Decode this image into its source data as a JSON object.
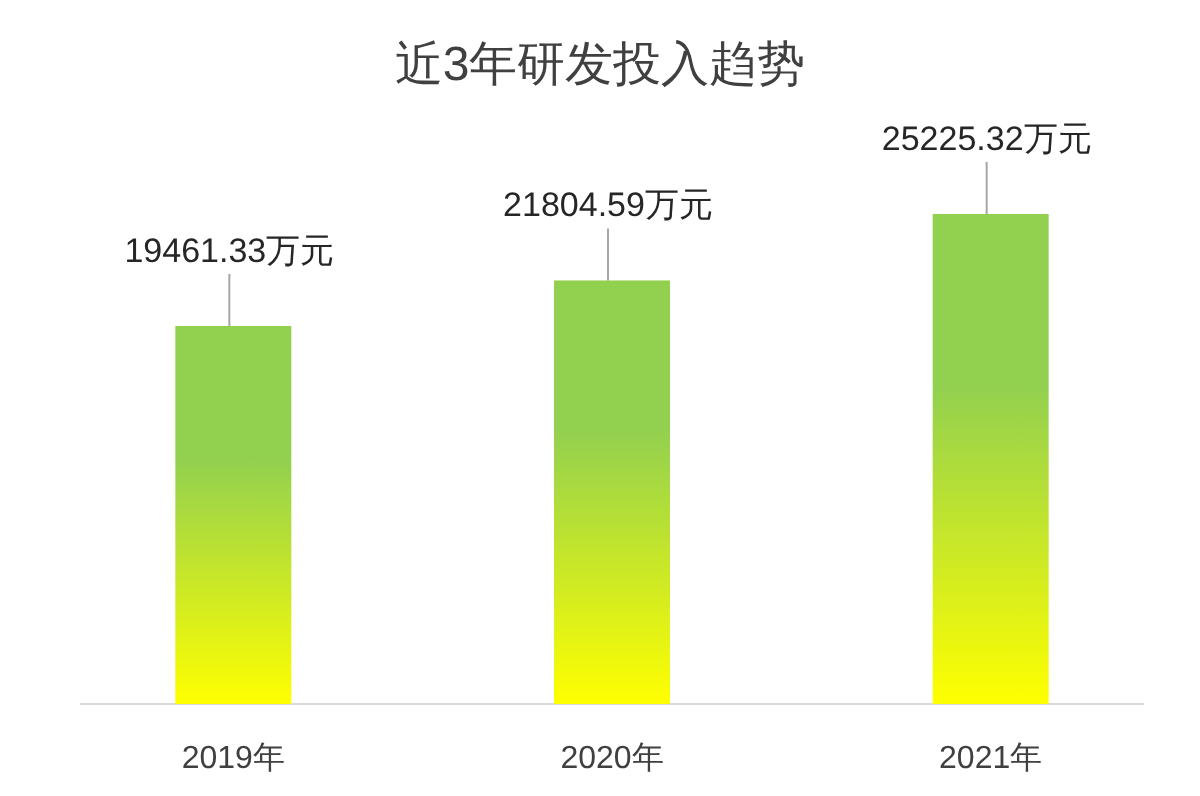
{
  "chart_data": {
    "type": "bar",
    "title": "近3年研发投入趋势",
    "categories": [
      "2019年",
      "2020年",
      "2021年"
    ],
    "series": [
      {
        "color": "#92d050",
        "values": [
          19461.33,
          21804.59,
          25225.32
        ],
        "value_labels": [
          "19461.33万元",
          "21804.59万元",
          "25225.32万元"
        ]
      }
    ]
  }
}
